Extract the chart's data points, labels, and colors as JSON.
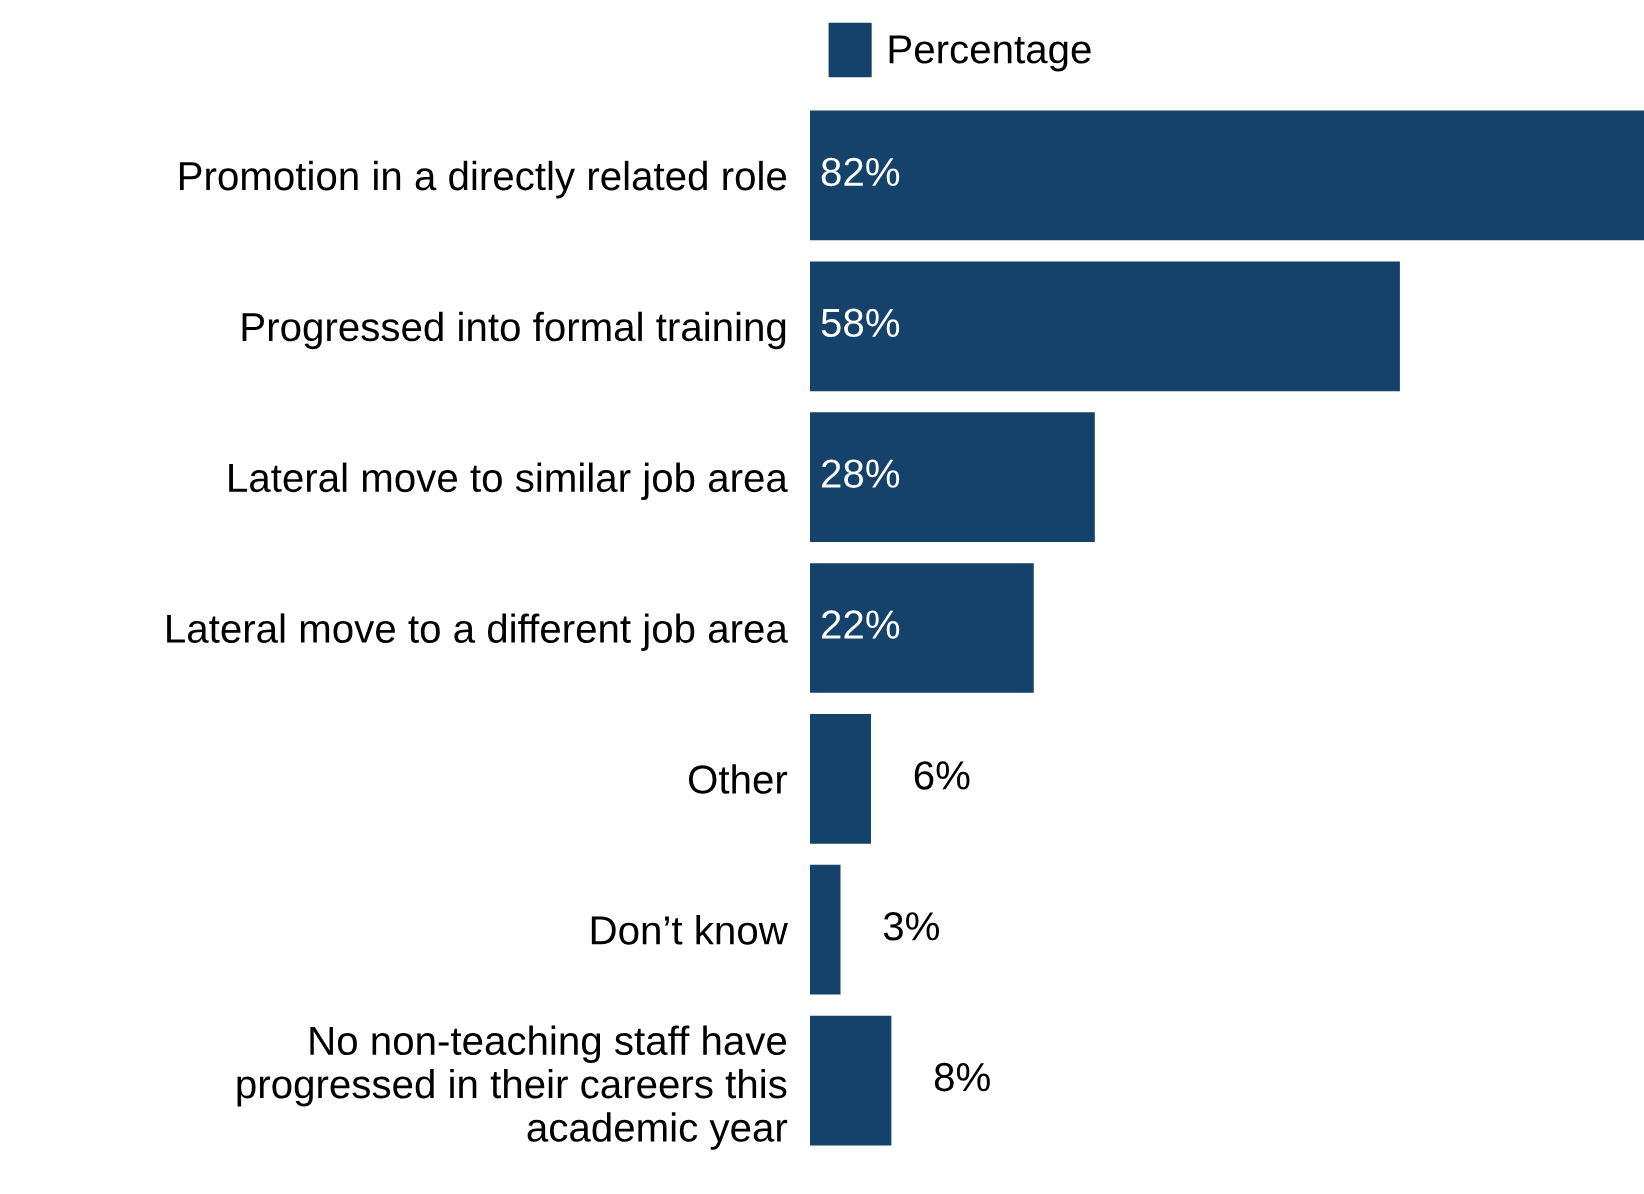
{
  "chart_data": {
    "type": "bar",
    "orientation": "horizontal",
    "legend": "top",
    "categories": [
      "Promotion in a directly related role",
      "Progressed into formal training",
      "Lateral move to similar job area",
      "Lateral move to a different job area",
      "Other",
      "Don’t know",
      "No non-teaching staff have\nprogressed in their careers this\nacademic year"
    ],
    "series": [
      {
        "name": "Percentage",
        "color": "#15426b",
        "values": [
          82,
          58,
          28,
          22,
          6,
          3,
          8
        ],
        "value_labels": [
          "82%",
          "58%",
          "28%",
          "22%",
          "6%",
          "3%",
          "8%"
        ]
      }
    ]
  }
}
